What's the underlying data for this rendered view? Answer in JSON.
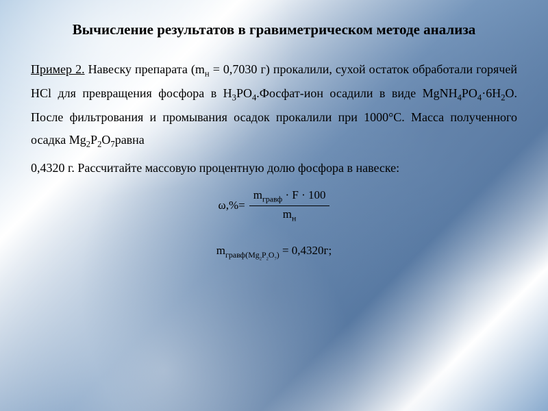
{
  "title": "Вычисление результатов в гравиметрическом методе анализа",
  "example_label": "Пример 2.",
  "body_text": " Навеску препарата (mн = 0,7030 г) прокалили, сухой остаток обработали горячей HCl для превращения фосфора в H3PO4.Фосфат-ион осадили в виде MgNH4PO4·6H2O. После фильтрования и промывания  осадок прокалили  при 1000°С. Масса полученного осадка Mg2P2O7равна",
  "body_text2": "0,4320 г. Рассчитайте массовую процентную долю фосфора в навеске:",
  "formula": {
    "left": "ω,%=",
    "numerator": "mгравф · F · 100",
    "denominator": "mн"
  },
  "formula2_left": "mгравф(Mg",
  "formula2_sub": "2P2O7",
  "formula2_right": ") = 0,4320г;",
  "styling": {
    "font_family": "Times New Roman",
    "title_fontsize": 21,
    "body_fontsize": 18,
    "formula_fontsize": 17,
    "text_color": "#000000",
    "bg_gradient_colors": [
      "#a8c5e0",
      "#ffffff",
      "#7a9bc0",
      "#5a7ca5"
    ],
    "line_height": 1.85,
    "text_align": "justify"
  }
}
